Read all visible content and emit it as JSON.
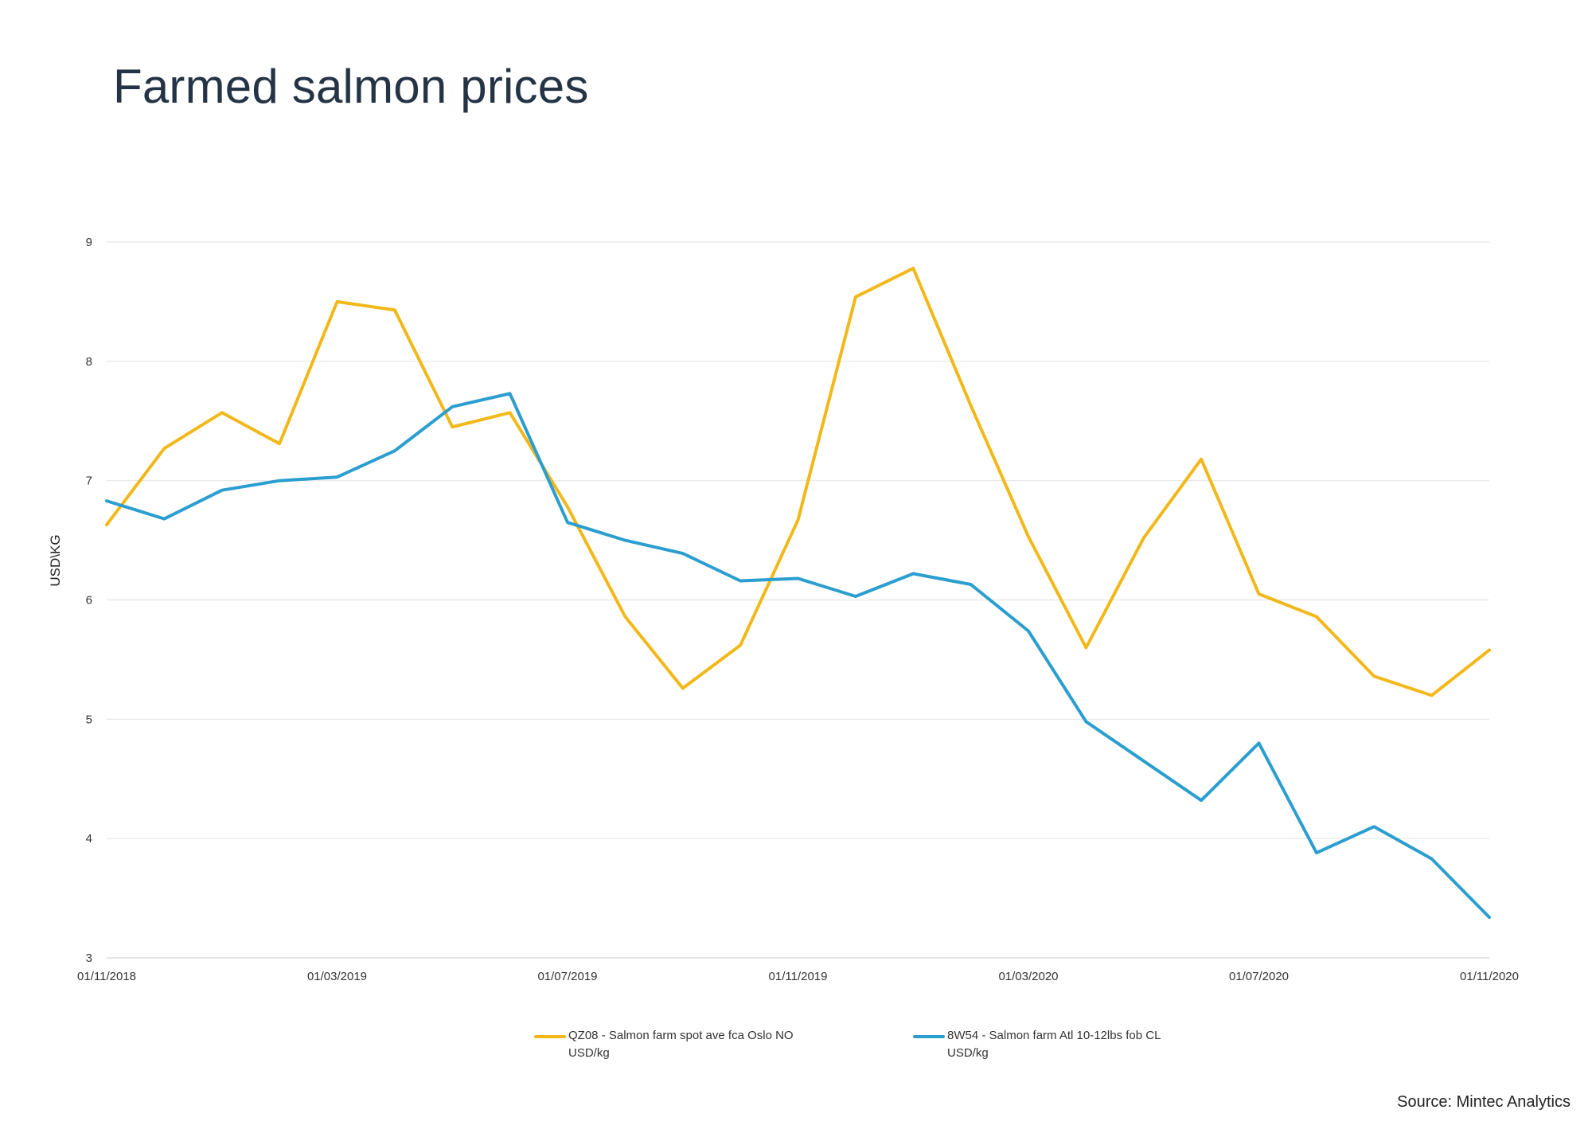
{
  "title": "Farmed salmon prices",
  "source": "Source: Mintec Analytics",
  "colors": {
    "qz08": "#f2b81a",
    "8w54": "#2b9ed0",
    "grid": "#e6e6e6",
    "title": "#243446"
  },
  "legend": {
    "series1_label": "QZ08 - Salmon farm spot ave fca Oslo NO USD/kg",
    "series2_label": "8W54 - Salmon farm Atl 10-12lbs fob CL USD/kg",
    "position": "bottom"
  },
  "chart_data": {
    "type": "line",
    "title": "Farmed salmon prices",
    "ylabel": "USD\\KG",
    "xlabel": "",
    "ylim": [
      3,
      9
    ],
    "yticks": [
      3,
      4,
      5,
      6,
      7,
      8,
      9
    ],
    "grid": true,
    "legend_position": "bottom",
    "x": [
      "01/11/2018",
      "01/12/2018",
      "01/01/2019",
      "01/02/2019",
      "01/03/2019",
      "01/04/2019",
      "01/05/2019",
      "01/06/2019",
      "01/07/2019",
      "01/08/2019",
      "01/09/2019",
      "01/10/2019",
      "01/11/2019",
      "01/12/2019",
      "01/01/2020",
      "01/02/2020",
      "01/03/2020",
      "01/04/2020",
      "01/05/2020",
      "01/06/2020",
      "01/07/2020",
      "01/08/2020",
      "01/09/2020",
      "01/10/2020",
      "01/11/2020"
    ],
    "xticks": [
      "01/11/2018",
      "01/03/2019",
      "01/07/2019",
      "01/11/2019",
      "01/03/2020",
      "01/07/2020",
      "01/11/2020"
    ],
    "series": [
      {
        "name": "QZ08 - Salmon farm spot ave fca Oslo NO USD/kg",
        "color": "#f2b81a",
        "values": [
          6.63,
          7.27,
          7.57,
          7.31,
          8.5,
          8.43,
          7.45,
          7.57,
          6.78,
          5.86,
          5.26,
          5.62,
          6.67,
          8.54,
          8.78,
          7.63,
          6.53,
          5.6,
          6.52,
          7.18,
          6.05,
          5.86,
          5.36,
          5.2,
          5.58
        ]
      },
      {
        "name": "8W54 - Salmon farm Atl 10-12lbs fob CL USD/kg",
        "color": "#2b9ed0",
        "values": [
          6.83,
          6.68,
          6.92,
          7.0,
          7.03,
          7.25,
          7.62,
          7.73,
          6.65,
          6.5,
          6.39,
          6.16,
          6.18,
          6.03,
          6.22,
          6.13,
          5.74,
          4.98,
          4.65,
          4.32,
          4.8,
          3.88,
          4.1,
          3.83,
          3.34
        ]
      }
    ]
  }
}
